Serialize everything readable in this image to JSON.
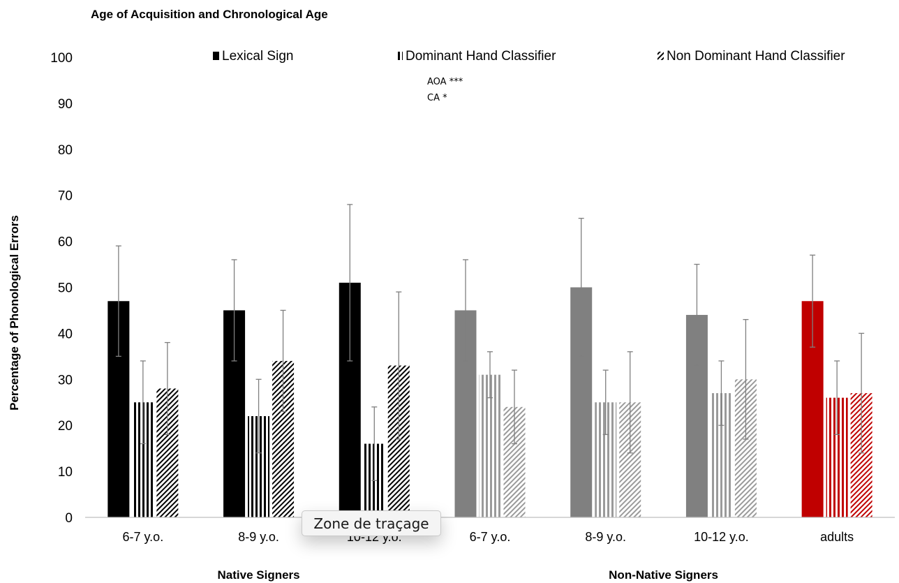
{
  "chart_data": {
    "type": "bar",
    "title": "Age of Acquisition and Chronological Age",
    "ylabel": "Percentage of Phonological Errors",
    "xlabel": "",
    "ylim": [
      0,
      100
    ],
    "yticks": [
      "0",
      "10",
      "20",
      "30",
      "40",
      "50",
      "60",
      "70",
      "80",
      "90",
      "100"
    ],
    "grid": false,
    "legend_position": "top",
    "categories": [
      "6-7 y.o.",
      "8-9 y.o.",
      "10-12 y.o.",
      "6-7 y.o.",
      "8-9 y.o.",
      "10-12 y.o.",
      "adults"
    ],
    "groups": [
      {
        "label": "Native Signers",
        "categories": [
          0,
          1,
          2
        ]
      },
      {
        "label": "Non-Native Signers",
        "categories": [
          3,
          4,
          5,
          6
        ]
      }
    ],
    "category_colors": [
      "#000000",
      "#000000",
      "#000000",
      "#808080",
      "#808080",
      "#808080",
      "#c00000"
    ],
    "series": [
      {
        "name": "Lexical Sign",
        "pattern": "solid",
        "values": [
          47,
          45,
          51,
          45,
          50,
          44,
          47
        ],
        "error_low": [
          35,
          34,
          34,
          34,
          35,
          33,
          37
        ],
        "error_high": [
          59,
          56,
          68,
          56,
          65,
          55,
          57
        ]
      },
      {
        "name": "Dominant Hand Classifier",
        "pattern": "vertical-stripes",
        "values": [
          25,
          22,
          16,
          31,
          25,
          27,
          26
        ],
        "error_low": [
          16,
          14,
          8,
          26,
          18,
          20,
          18
        ],
        "error_high": [
          34,
          30,
          24,
          36,
          32,
          34,
          34
        ]
      },
      {
        "name": "Non Dominant Hand Classifier",
        "pattern": "diagonal-stripes",
        "values": [
          28,
          34,
          33,
          24,
          25,
          30,
          27
        ],
        "error_low": [
          18,
          23,
          17,
          16,
          14,
          17,
          14
        ],
        "error_high": [
          38,
          45,
          49,
          32,
          36,
          43,
          40
        ]
      }
    ],
    "annotations": [
      "AOA ***",
      "CA *"
    ]
  },
  "tooltip": {
    "text": "Zone de traçage"
  }
}
